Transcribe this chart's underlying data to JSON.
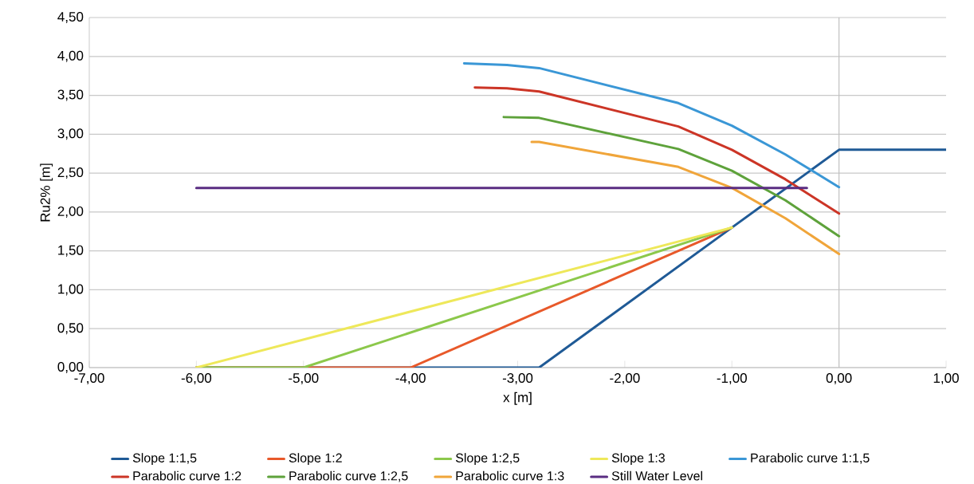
{
  "chart_data": {
    "type": "line",
    "xlabel": "x [m]",
    "ylabel": "Ru2% [m]",
    "xlim": [
      -7,
      1
    ],
    "ylim": [
      0,
      4.5
    ],
    "xticks": [
      {
        "value": -7,
        "label": "-7,00"
      },
      {
        "value": -6,
        "label": "-6,00"
      },
      {
        "value": -5,
        "label": "-5,00"
      },
      {
        "value": -4,
        "label": "-4,00"
      },
      {
        "value": -3,
        "label": "-3,00"
      },
      {
        "value": -2,
        "label": "-2,00"
      },
      {
        "value": -1,
        "label": "-1,00"
      },
      {
        "value": 0,
        "label": "0,00"
      },
      {
        "value": 1,
        "label": "1,00"
      }
    ],
    "yticks": [
      {
        "value": 0,
        "label": "0,00"
      },
      {
        "value": 0.5,
        "label": "0,50"
      },
      {
        "value": 1,
        "label": "1,00"
      },
      {
        "value": 1.5,
        "label": "1,50"
      },
      {
        "value": 2,
        "label": "2,00"
      },
      {
        "value": 2.5,
        "label": "2,50"
      },
      {
        "value": 3,
        "label": "3,00"
      },
      {
        "value": 3.5,
        "label": "3,50"
      },
      {
        "value": 4,
        "label": "4,00"
      },
      {
        "value": 4.5,
        "label": "4,50"
      }
    ],
    "grid": "y",
    "legend": "bottom",
    "marker": "none",
    "line_style": "solid",
    "ref_lines": [
      {
        "axis": "x",
        "value": 0,
        "color": "#c0c0c0"
      }
    ],
    "series": [
      {
        "name": "Slope 1:1,5",
        "color": "#1f5a96",
        "x": [
          -6,
          -2.8,
          -1,
          0,
          1
        ],
        "values": [
          0,
          0,
          1.8,
          2.8,
          2.8
        ]
      },
      {
        "name": "Slope 1:2",
        "color": "#e8592a",
        "x": [
          -6,
          -4,
          -1
        ],
        "values": [
          0,
          0,
          1.8
        ]
      },
      {
        "name": "Slope 1:2,5",
        "color": "#8cc84b",
        "x": [
          -6,
          -5,
          -1
        ],
        "values": [
          0,
          0,
          1.8
        ]
      },
      {
        "name": "Slope 1:3",
        "color": "#eee85a",
        "x": [
          -6,
          -1
        ],
        "values": [
          0,
          1.8
        ]
      },
      {
        "name": "Parabolic curve 1:1,5",
        "color": "#3a97d6",
        "x": [
          -3.5,
          -3.1,
          -2.8,
          -1.5,
          -1,
          -0.5,
          0
        ],
        "values": [
          3.91,
          3.89,
          3.85,
          3.4,
          3.11,
          2.74,
          2.32
        ]
      },
      {
        "name": "Parabolic curve 1:2",
        "color": "#cc3526",
        "x": [
          -3.4,
          -3.1,
          -2.8,
          -1.5,
          -1,
          -0.5,
          0
        ],
        "values": [
          3.6,
          3.59,
          3.55,
          3.1,
          2.8,
          2.42,
          1.98
        ]
      },
      {
        "name": "Parabolic curve 1:2,5",
        "color": "#5ea23b",
        "x": [
          -3.13,
          -2.8,
          -1.5,
          -1,
          -0.5,
          0
        ],
        "values": [
          3.22,
          3.21,
          2.81,
          2.53,
          2.15,
          1.69
        ]
      },
      {
        "name": "Parabolic curve 1:3",
        "color": "#f0a53a",
        "x": [
          -2.87,
          -2.8,
          -1.5,
          -1,
          -0.5,
          0
        ],
        "values": [
          2.9,
          2.9,
          2.58,
          2.31,
          1.92,
          1.46
        ]
      },
      {
        "name": "Still Water Level",
        "color": "#5a2d82",
        "x": [
          -6,
          -0.3
        ],
        "values": [
          2.31,
          2.31
        ]
      }
    ]
  }
}
